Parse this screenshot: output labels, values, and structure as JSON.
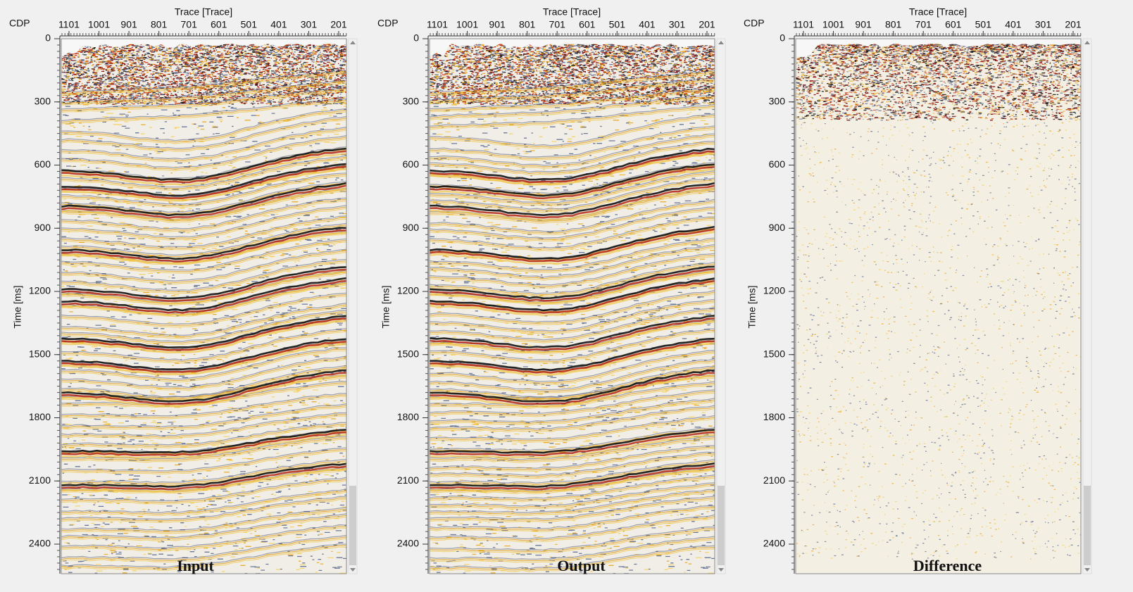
{
  "panels": [
    {
      "caption": "Input"
    },
    {
      "caption": "Output"
    },
    {
      "caption": "Difference"
    }
  ],
  "x_axis": {
    "label": "Trace [Trace]",
    "corner_label": "CDP",
    "ticks": [
      1101,
      1001,
      901,
      801,
      701,
      601,
      501,
      401,
      301,
      201
    ]
  },
  "y_axis": {
    "label": "Time [ms]",
    "ticks": [
      0,
      300,
      600,
      900,
      1200,
      1500,
      1800,
      2100,
      2400
    ]
  }
}
